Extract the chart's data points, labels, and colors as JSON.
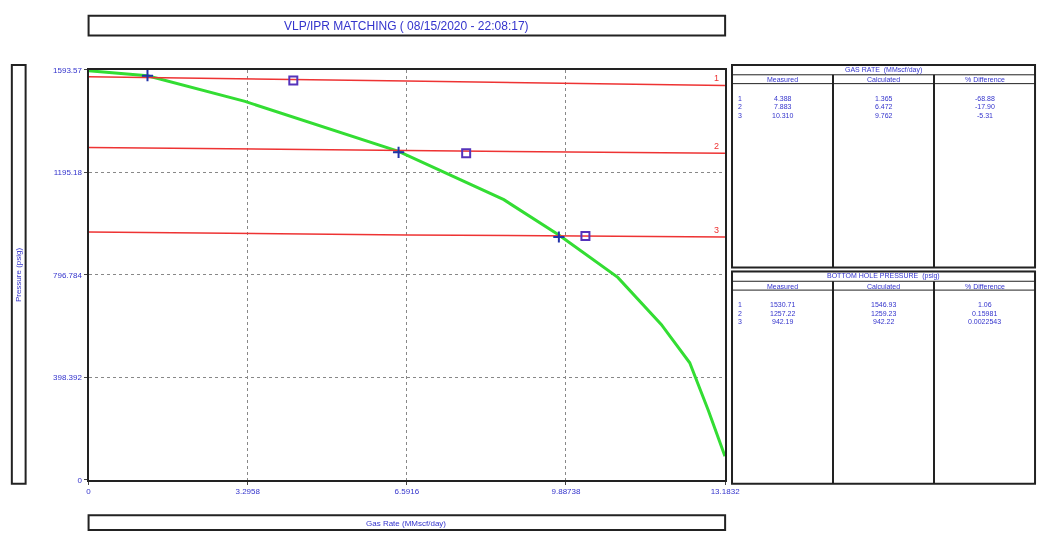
{
  "chart_data": [
    {
      "type": "line",
      "title": "VLP/IPR MATCHING ( 08/15/2020 - 22:08:17)",
      "xlabel": "Gas Rate (MMscf/day)",
      "ylabel": "Pressure (psig)",
      "xlim": [
        0,
        13.1832
      ],
      "xticks": [
        0,
        3.2958,
        6.5916,
        9.88738,
        13.1832
      ],
      "ylim": [
        0,
        1593.57
      ],
      "yticks": [
        0,
        398.392,
        796.784,
        1195.18,
        1593.57
      ],
      "grid": true,
      "line_style": "solid",
      "marker": "none",
      "series": [
        {
          "type": "line",
          "color": "#33dd33",
          "x": [
            0,
            1.22,
            3.24,
            6.42,
            8.6,
            9.74,
            10.96,
            11.86,
            12.45,
            12.84,
            13.18
          ],
          "values": [
            1590,
            1571,
            1471,
            1277,
            1089,
            952,
            787,
            604,
            455,
            268,
            92
          ]
        },
        {
          "type": "line",
          "name": "1",
          "color": "#ee3333",
          "x": [
            0,
            6.59,
            13.18
          ],
          "values": [
            1567,
            1550,
            1533
          ]
        },
        {
          "type": "line",
          "name": "2",
          "color": "#ee3333",
          "x": [
            0,
            6.59,
            13.18
          ],
          "values": [
            1292,
            1280,
            1269
          ]
        },
        {
          "type": "line",
          "name": "3",
          "color": "#ee3333",
          "x": [
            0,
            6.59,
            13.18
          ],
          "values": [
            963,
            952,
            944
          ]
        },
        {
          "type": "scatter",
          "marker": "cross",
          "color": "#2233aa",
          "x": [
            1.22,
            6.42,
            9.74
          ],
          "values": [
            1571,
            1273,
            944
          ]
        },
        {
          "type": "scatter",
          "marker": "square",
          "color": "#5533bb",
          "x": [
            4.24,
            7.82,
            10.29
          ],
          "values": [
            1552,
            1269,
            948
          ]
        }
      ]
    },
    {
      "type": "other",
      "title": "GAS RATE  (MMscf/day)",
      "annotations": [
        "Measured",
        "Calculated",
        "% Difference",
        "1",
        "4.388",
        "1.365",
        "-68.88",
        "2",
        "7.883",
        "6.472",
        "-17.90",
        "3",
        "10.310",
        "9.762",
        "-5.31"
      ]
    },
    {
      "type": "other",
      "title": "BOTTOM HOLE PRESSURE  (psig)",
      "annotations": [
        "Measured",
        "Calculated",
        "% Difference",
        "1",
        "1530.71",
        "1546.93",
        "1.06",
        "2",
        "1257.22",
        "1259.23",
        "0.15981",
        "3",
        "942.19",
        "942.22",
        "0.0022543"
      ]
    }
  ]
}
